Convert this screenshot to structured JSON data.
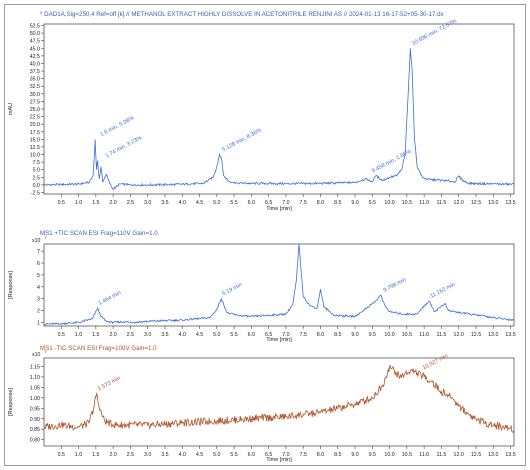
{
  "chart_data": [
    {
      "type": "line",
      "title": "* DAD1A,Sig=250,4  Ref=off [k] // METHANOL EXTRACT HIGHLY DISSOLVE IN ACETONITRILE RENJINI AS // 2024-01-13 16-17-52+05-30-17.dx",
      "ylabel": "mAU",
      "xlabel": "Time [min]",
      "xlim": [
        0,
        13.6
      ],
      "ylim": [
        -3,
        53
      ],
      "xticks": [
        0.5,
        1,
        1.5,
        2,
        2.5,
        3,
        3.5,
        4,
        4.5,
        5,
        5.5,
        6,
        6.5,
        7,
        7.5,
        8,
        8.5,
        9,
        9.5,
        10,
        10.5,
        11,
        11.5,
        12,
        12.5,
        13,
        13.5
      ],
      "yticks": [
        -2.5,
        0,
        2.5,
        5,
        7.5,
        10,
        12.5,
        15,
        17.5,
        20,
        22.5,
        25,
        27.5,
        30,
        32.5,
        35,
        37.5,
        40,
        42.5,
        45,
        47.5,
        50,
        52.5
      ],
      "color": "#3a6fd8",
      "x": [
        0,
        0.5,
        1,
        1.3,
        1.42,
        1.48,
        1.52,
        1.55,
        1.6,
        1.65,
        1.7,
        1.8,
        1.9,
        2.0,
        2.2,
        2.5,
        3,
        4,
        4.6,
        4.9,
        5.0,
        5.08,
        5.13,
        5.2,
        5.35,
        5.6,
        6,
        7,
        8,
        9,
        9.3,
        9.5,
        9.6,
        9.8,
        10.0,
        10.2,
        10.35,
        10.45,
        10.55,
        10.6,
        10.65,
        10.72,
        10.8,
        10.95,
        11.1,
        11.5,
        11.9,
        12.0,
        12.1,
        12.3,
        13,
        13.6
      ],
      "y": [
        0,
        0.1,
        0.3,
        0.8,
        3,
        15,
        5,
        8,
        2,
        6,
        1,
        3.5,
        0.5,
        -1.5,
        0.3,
        0,
        0,
        0.2,
        0.5,
        2.5,
        6,
        10,
        9,
        3,
        1.2,
        0.6,
        0.5,
        0.4,
        0.5,
        0.8,
        2,
        1,
        3,
        1.5,
        2.5,
        3,
        5,
        10,
        33,
        45,
        38,
        15,
        6,
        2.5,
        1.8,
        1.5,
        1,
        3,
        1.5,
        0.5,
        0.3,
        0.2
      ],
      "annotations": [
        {
          "text": "1.6 min, 5.08%",
          "x": 1.6,
          "y": 15
        },
        {
          "text": "1.74 min, 3.23%",
          "x": 1.75,
          "y": 8
        },
        {
          "text": "5.128 min, 8.36%",
          "x": 5.13,
          "y": 10
        },
        {
          "text": "9.458 min, 1.86%",
          "x": 9.46,
          "y": 3
        },
        {
          "text": "10.696 min, 72.57%",
          "x": 10.62,
          "y": 45
        }
      ]
    },
    {
      "type": "line",
      "title": "MS1 +TIC SCAN ESI Frag=110V Gain=1.0",
      "ylabel": "[Response]",
      "xlabel": "Time [min]",
      "yscale": "x10^7",
      "xlim": [
        0,
        13.6
      ],
      "ylim": [
        0.7,
        7.6
      ],
      "xticks": [
        0.5,
        1,
        1.5,
        2,
        2.5,
        3,
        3.5,
        4,
        4.5,
        5,
        5.5,
        6,
        6.5,
        7,
        7.5,
        8,
        8.5,
        9,
        9.5,
        10,
        10.5,
        11,
        11.5,
        12,
        12.5,
        13,
        13.5
      ],
      "yticks": [
        1,
        2,
        3,
        4,
        5,
        6,
        7
      ],
      "color": "#3a6fd8",
      "x": [
        0,
        0.5,
        1,
        1.4,
        1.55,
        1.65,
        1.8,
        2,
        2.3,
        2.6,
        3,
        4,
        4.8,
        5.0,
        5.13,
        5.3,
        5.6,
        6,
        6.5,
        7,
        7.2,
        7.3,
        7.38,
        7.5,
        7.7,
        7.9,
        8.0,
        8.1,
        8.4,
        9,
        9.6,
        9.75,
        9.85,
        10,
        10.4,
        10.8,
        11.0,
        11.15,
        11.3,
        11.6,
        11.7,
        11.9,
        12.3,
        12.6,
        13,
        13.6
      ],
      "y": [
        0.85,
        0.9,
        1.0,
        1.3,
        2.2,
        1.5,
        1.1,
        1.0,
        1.05,
        1.0,
        1.1,
        1.2,
        1.4,
        2.1,
        3.0,
        1.8,
        1.6,
        1.5,
        1.6,
        1.7,
        2.5,
        4.5,
        7.6,
        3.2,
        2.4,
        2.2,
        3.8,
        2.3,
        1.6,
        1.5,
        2.8,
        3.3,
        2.5,
        1.9,
        1.7,
        1.7,
        2.4,
        2.8,
        1.9,
        2.6,
        2.0,
        1.9,
        1.7,
        1.6,
        1.4,
        1.2
      ],
      "annotations": [
        {
          "text": "1.464 min",
          "x": 1.55,
          "y": 2.2
        },
        {
          "text": "5.19 min",
          "x": 5.13,
          "y": 3.0
        },
        {
          "text": "9.798 min",
          "x": 9.8,
          "y": 3.3
        },
        {
          "text": "11.162 min",
          "x": 11.15,
          "y": 2.8
        }
      ]
    },
    {
      "type": "line",
      "title": "MS1 -TIC SCAN ESI Frag=100V Gain=1.0",
      "ylabel": "[Response]",
      "xlabel": "Time [min]",
      "yscale": "x10^7",
      "xlim": [
        0,
        13.6
      ],
      "ylim": [
        0.77,
        1.19
      ],
      "xticks": [
        0.5,
        1,
        1.5,
        2,
        2.5,
        3,
        3.5,
        4,
        4.5,
        5,
        5.5,
        6,
        6.5,
        7,
        7.5,
        8,
        8.5,
        9,
        9.5,
        10,
        10.5,
        11,
        11.5,
        12,
        12.5,
        13,
        13.5
      ],
      "yticks": [
        0.8,
        0.85,
        0.9,
        0.95,
        1.0,
        1.05,
        1.1,
        1.15
      ],
      "color": "#b0542a",
      "x": [
        0,
        0.5,
        1.0,
        1.3,
        1.45,
        1.52,
        1.6,
        1.75,
        2.0,
        3,
        4,
        5,
        6,
        7,
        8,
        8.5,
        9,
        9.5,
        9.8,
        10.0,
        10.3,
        10.6,
        10.8,
        11.0,
        11.2,
        11.5,
        11.8,
        12.0,
        12.3,
        12.6,
        13,
        13.6
      ],
      "y": [
        0.86,
        0.87,
        0.86,
        0.88,
        0.96,
        1.02,
        0.95,
        0.89,
        0.87,
        0.87,
        0.88,
        0.89,
        0.9,
        0.91,
        0.93,
        0.95,
        0.97,
        1.0,
        1.06,
        1.15,
        1.1,
        1.13,
        1.12,
        1.1,
        1.08,
        1.03,
        1.0,
        0.96,
        0.92,
        0.89,
        0.87,
        0.85
      ],
      "annotations": [
        {
          "text": "1.573 min",
          "x": 1.53,
          "y": 1.02
        },
        {
          "text": "10.927 min",
          "x": 10.93,
          "y": 1.12
        }
      ]
    }
  ]
}
